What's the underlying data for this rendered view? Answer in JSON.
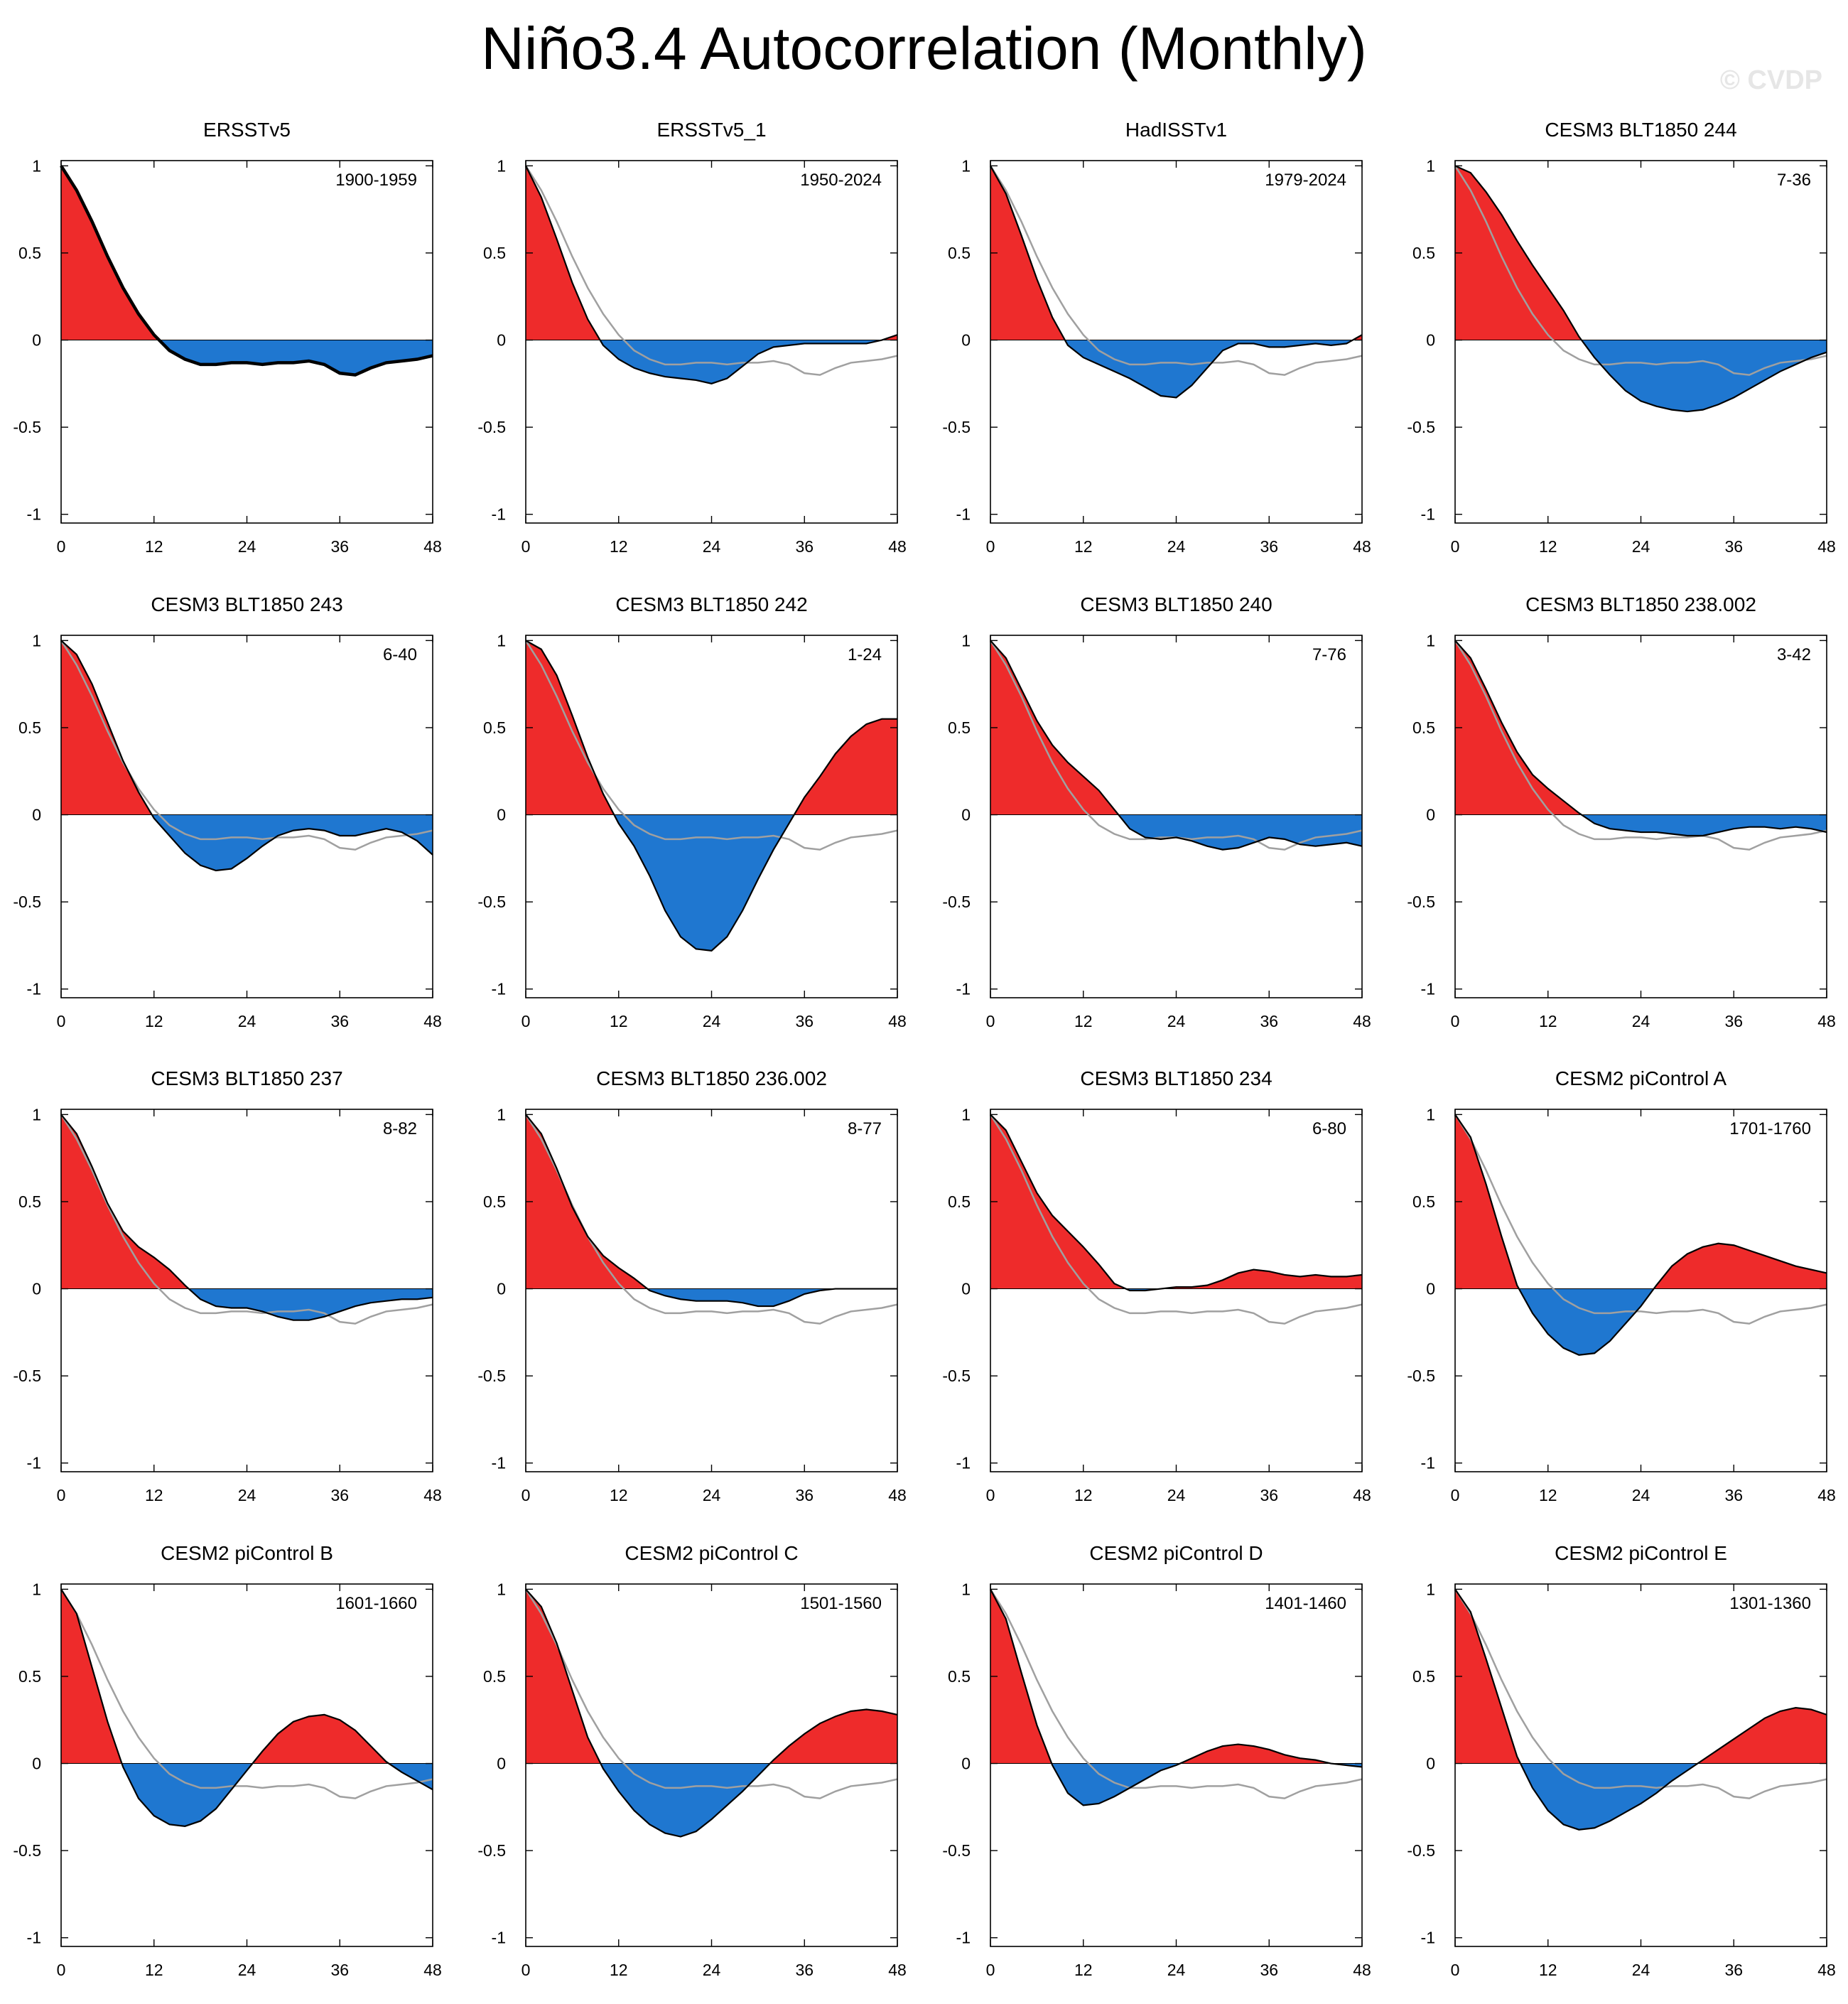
{
  "page": {
    "title": "Niño3.4 Autocorrelation (Monthly)",
    "watermark": "© CVDP"
  },
  "colors": {
    "positive": "#ee2b2b",
    "negative": "#1f77d0",
    "line": "#000000",
    "reference_line": "#a0a0a0",
    "axis": "#000000"
  },
  "chart_data": {
    "type": "area",
    "layout": "4x4 grid of panels",
    "x_ticks": [
      0,
      12,
      24,
      36,
      48
    ],
    "y_ticks": [
      1,
      0.5,
      0,
      -0.5,
      -1
    ],
    "x_tick_labels": [
      "0",
      "12",
      "24",
      "36",
      "48"
    ],
    "y_tick_labels": [
      "1",
      "0.5",
      "0",
      "-0.5",
      "-1"
    ],
    "xlim": [
      0,
      48
    ],
    "ylim": [
      -1.05,
      1.03
    ],
    "x_step": 2,
    "reference_series": {
      "name": "ERSSTv5 1900-1959 (grey reference)",
      "values": [
        1.0,
        0.86,
        0.68,
        0.48,
        0.3,
        0.15,
        0.03,
        -0.06,
        -0.11,
        -0.14,
        -0.14,
        -0.13,
        -0.13,
        -0.14,
        -0.13,
        -0.13,
        -0.12,
        -0.14,
        -0.19,
        -0.2,
        -0.16,
        -0.13,
        -0.12,
        -0.11,
        -0.09
      ]
    },
    "panels": [
      {
        "title": "ERSSTv5",
        "period": "1900-1959",
        "values": [
          1.0,
          0.86,
          0.68,
          0.48,
          0.3,
          0.15,
          0.03,
          -0.06,
          -0.11,
          -0.14,
          -0.14,
          -0.13,
          -0.13,
          -0.14,
          -0.13,
          -0.13,
          -0.12,
          -0.14,
          -0.19,
          -0.2,
          -0.16,
          -0.13,
          -0.12,
          -0.11,
          -0.09
        ]
      },
      {
        "title": "ERSSTv5_1",
        "period": "1950-2024",
        "values": [
          1.0,
          0.82,
          0.58,
          0.33,
          0.12,
          -0.03,
          -0.11,
          -0.16,
          -0.19,
          -0.21,
          -0.22,
          -0.23,
          -0.25,
          -0.22,
          -0.15,
          -0.08,
          -0.04,
          -0.03,
          -0.02,
          -0.02,
          -0.02,
          -0.02,
          -0.02,
          0.0,
          0.03
        ]
      },
      {
        "title": "HadISSTv1",
        "period": "1979-2024",
        "values": [
          1.0,
          0.84,
          0.6,
          0.35,
          0.13,
          -0.03,
          -0.1,
          -0.14,
          -0.18,
          -0.22,
          -0.27,
          -0.32,
          -0.33,
          -0.26,
          -0.16,
          -0.06,
          -0.02,
          -0.02,
          -0.04,
          -0.04,
          -0.03,
          -0.02,
          -0.03,
          -0.02,
          0.03
        ]
      },
      {
        "title": "CESM3 BLT1850 244",
        "period": "7-36",
        "values": [
          1.0,
          0.96,
          0.85,
          0.72,
          0.57,
          0.43,
          0.3,
          0.17,
          0.02,
          -0.1,
          -0.2,
          -0.29,
          -0.35,
          -0.38,
          -0.4,
          -0.41,
          -0.4,
          -0.37,
          -0.33,
          -0.28,
          -0.23,
          -0.18,
          -0.14,
          -0.1,
          -0.07
        ]
      },
      {
        "title": "CESM3 BLT1850 243",
        "period": "6-40",
        "values": [
          1.0,
          0.92,
          0.75,
          0.53,
          0.31,
          0.13,
          -0.02,
          -0.12,
          -0.22,
          -0.29,
          -0.32,
          -0.31,
          -0.25,
          -0.18,
          -0.12,
          -0.09,
          -0.08,
          -0.09,
          -0.12,
          -0.12,
          -0.1,
          -0.08,
          -0.1,
          -0.15,
          -0.23
        ]
      },
      {
        "title": "CESM3 BLT1850 242",
        "period": "1-24",
        "values": [
          1.0,
          0.95,
          0.8,
          0.57,
          0.33,
          0.12,
          -0.05,
          -0.18,
          -0.35,
          -0.55,
          -0.7,
          -0.77,
          -0.78,
          -0.7,
          -0.55,
          -0.37,
          -0.2,
          -0.05,
          0.1,
          0.22,
          0.35,
          0.45,
          0.52,
          0.55,
          0.55
        ]
      },
      {
        "title": "CESM3 BLT1850 240",
        "period": "7-76",
        "values": [
          1.0,
          0.9,
          0.72,
          0.54,
          0.4,
          0.3,
          0.22,
          0.14,
          0.03,
          -0.08,
          -0.13,
          -0.14,
          -0.13,
          -0.15,
          -0.18,
          -0.2,
          -0.19,
          -0.16,
          -0.13,
          -0.14,
          -0.17,
          -0.18,
          -0.17,
          -0.16,
          -0.18
        ]
      },
      {
        "title": "CESM3 BLT1850 238.002",
        "period": "3-42",
        "values": [
          1.0,
          0.9,
          0.72,
          0.53,
          0.36,
          0.23,
          0.15,
          0.08,
          0.01,
          -0.05,
          -0.08,
          -0.09,
          -0.1,
          -0.1,
          -0.11,
          -0.12,
          -0.12,
          -0.1,
          -0.08,
          -0.07,
          -0.07,
          -0.08,
          -0.07,
          -0.08,
          -0.1
        ]
      },
      {
        "title": "CESM3 BLT1850 237",
        "period": "8-82",
        "values": [
          1.0,
          0.89,
          0.7,
          0.49,
          0.33,
          0.24,
          0.18,
          0.11,
          0.02,
          -0.06,
          -0.1,
          -0.11,
          -0.11,
          -0.13,
          -0.16,
          -0.18,
          -0.18,
          -0.16,
          -0.13,
          -0.1,
          -0.08,
          -0.07,
          -0.06,
          -0.06,
          -0.05
        ]
      },
      {
        "title": "CESM3 BLT1850 236.002",
        "period": "8-77",
        "values": [
          1.0,
          0.89,
          0.69,
          0.47,
          0.3,
          0.19,
          0.12,
          0.06,
          -0.01,
          -0.04,
          -0.06,
          -0.07,
          -0.07,
          -0.07,
          -0.08,
          -0.1,
          -0.1,
          -0.07,
          -0.03,
          -0.01,
          0.0,
          0.0,
          0.0,
          0.0,
          0.0
        ]
      },
      {
        "title": "CESM3 BLT1850 234",
        "period": "6-80",
        "values": [
          1.0,
          0.91,
          0.73,
          0.55,
          0.42,
          0.33,
          0.24,
          0.14,
          0.03,
          -0.01,
          -0.01,
          0.0,
          0.01,
          0.01,
          0.02,
          0.05,
          0.09,
          0.11,
          0.1,
          0.08,
          0.07,
          0.08,
          0.07,
          0.07,
          0.08
        ]
      },
      {
        "title": "CESM2 piControl A",
        "period": "1701-1760",
        "values": [
          1.0,
          0.87,
          0.6,
          0.3,
          0.02,
          -0.14,
          -0.26,
          -0.34,
          -0.38,
          -0.37,
          -0.3,
          -0.2,
          -0.1,
          0.02,
          0.13,
          0.2,
          0.24,
          0.26,
          0.25,
          0.22,
          0.19,
          0.16,
          0.13,
          0.11,
          0.09
        ]
      },
      {
        "title": "CESM2 piControl B",
        "period": "1601-1660",
        "values": [
          1.0,
          0.86,
          0.55,
          0.24,
          -0.02,
          -0.2,
          -0.3,
          -0.35,
          -0.36,
          -0.33,
          -0.26,
          -0.15,
          -0.04,
          0.07,
          0.17,
          0.24,
          0.27,
          0.28,
          0.25,
          0.19,
          0.1,
          0.01,
          -0.05,
          -0.1,
          -0.15
        ]
      },
      {
        "title": "CESM2 piControl C",
        "period": "1501-1560",
        "values": [
          1.0,
          0.9,
          0.69,
          0.42,
          0.15,
          -0.03,
          -0.16,
          -0.27,
          -0.35,
          -0.4,
          -0.42,
          -0.39,
          -0.32,
          -0.24,
          -0.16,
          -0.07,
          0.02,
          0.1,
          0.17,
          0.23,
          0.27,
          0.3,
          0.31,
          0.3,
          0.28
        ]
      },
      {
        "title": "CESM2 piControl D",
        "period": "1401-1460",
        "values": [
          1.0,
          0.83,
          0.52,
          0.22,
          -0.01,
          -0.17,
          -0.24,
          -0.23,
          -0.19,
          -0.14,
          -0.09,
          -0.04,
          -0.01,
          0.03,
          0.07,
          0.1,
          0.11,
          0.1,
          0.08,
          0.05,
          0.03,
          0.02,
          0.0,
          -0.01,
          -0.02
        ]
      },
      {
        "title": "CESM2 piControl E",
        "period": "1301-1360",
        "values": [
          1.0,
          0.87,
          0.6,
          0.32,
          0.04,
          -0.14,
          -0.27,
          -0.35,
          -0.38,
          -0.37,
          -0.33,
          -0.28,
          -0.23,
          -0.17,
          -0.1,
          -0.04,
          0.02,
          0.08,
          0.14,
          0.2,
          0.26,
          0.3,
          0.32,
          0.31,
          0.28
        ]
      }
    ]
  }
}
